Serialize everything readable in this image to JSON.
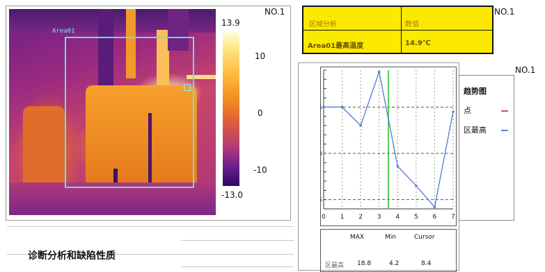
{
  "thermal": {
    "area_label": "Area01",
    "panel_label": "NO.1",
    "scale": {
      "max": "13.9",
      "min": "-13.0",
      "ticks": [
        "10",
        "0",
        "-10"
      ]
    }
  },
  "table": {
    "panel_label": "NO.1",
    "header": [
      "区域分析",
      "数值"
    ],
    "row": [
      "Area01最高温度",
      "14.9℃"
    ]
  },
  "chart": {
    "panel_label": "NO.1",
    "legend": {
      "title": "趋势图",
      "items": [
        "点",
        "区最高"
      ]
    },
    "stats": {
      "headers": [
        "MAX",
        "Min",
        "Cursor"
      ],
      "row_label": "区最高",
      "values": [
        "18.8",
        "4.2",
        "8.4"
      ]
    }
  },
  "diagnosis": {
    "title": "诊断分析和缺陷性质"
  },
  "chart_data": {
    "type": "line",
    "x": [
      0,
      1,
      2,
      3,
      4,
      5,
      6,
      7
    ],
    "series": [
      {
        "name": "区最高",
        "values": [
          15,
          15,
          13,
          18.8,
          8.6,
          6.5,
          4.2,
          14.5
        ]
      }
    ],
    "ylim": [
      4,
      19
    ],
    "xlim": [
      0,
      7
    ],
    "y_ticks": [
      5,
      10,
      15
    ],
    "x_ticks": [
      0,
      1,
      2,
      3,
      4,
      5,
      6,
      7
    ],
    "cursor_x": 3.5,
    "grid": true,
    "colors": {
      "line": "#5b7fd6",
      "cursor": "#22c122"
    }
  }
}
